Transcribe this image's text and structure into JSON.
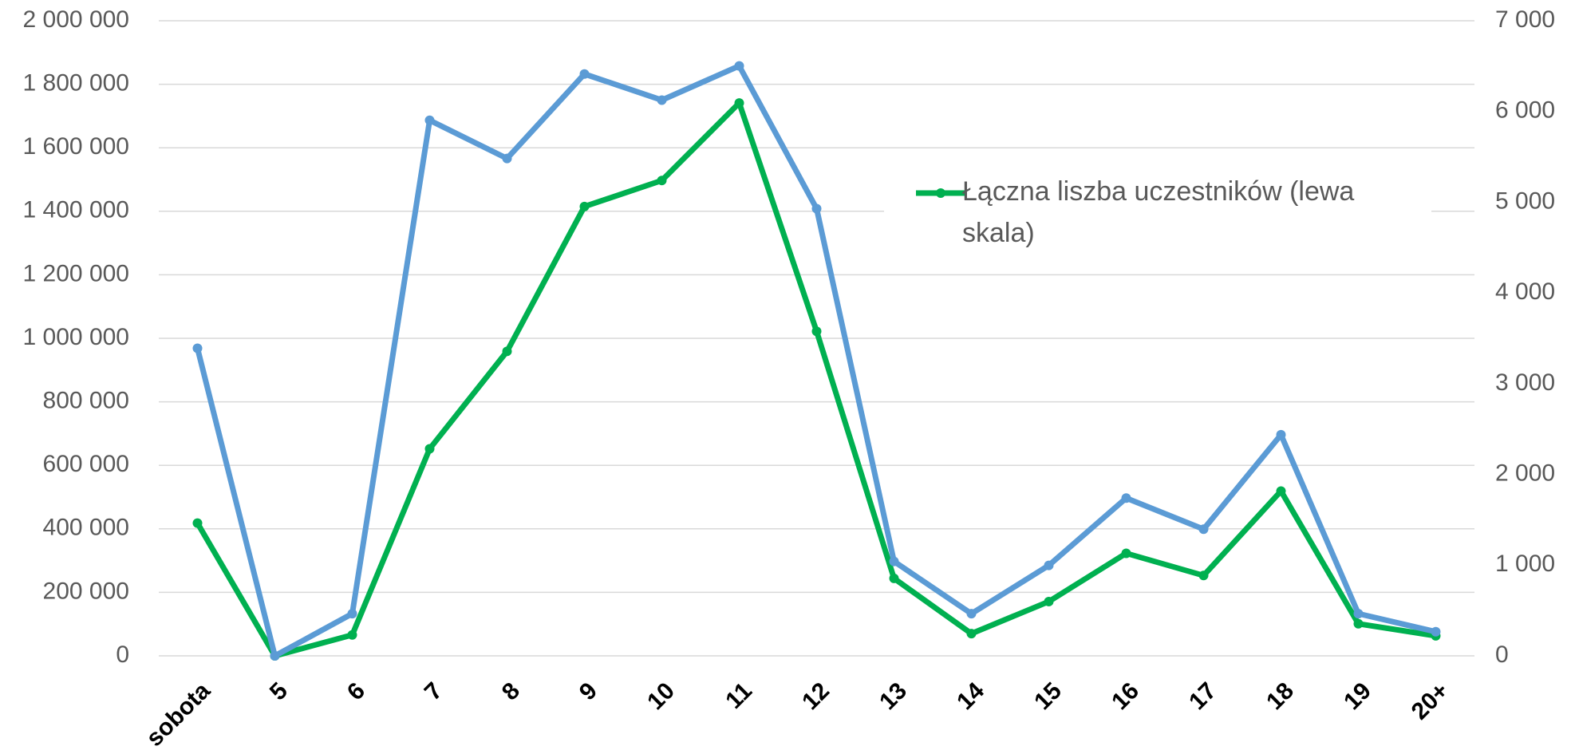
{
  "chart_data": {
    "type": "line",
    "categories": [
      "sobota",
      "5",
      "6",
      "7",
      "8",
      "9",
      "10",
      "11",
      "12",
      "13",
      "14",
      "15",
      "16",
      "17",
      "18",
      "19",
      "20+"
    ],
    "series": [
      {
        "name": "Łączna liszba uczestników (lewa skala)",
        "color": "#00b050",
        "axis": "y",
        "values": [
          418000,
          0,
          66000,
          652000,
          959000,
          1415000,
          1497000,
          1741000,
          1022000,
          244000,
          70000,
          171000,
          323000,
          253000,
          519000,
          101000,
          63000
        ]
      },
      {
        "color": "#5b9bd5",
        "axis": "y2",
        "values": [
          3390,
          0,
          465,
          5903,
          5482,
          6413,
          6125,
          6502,
          4929,
          1041,
          465,
          997,
          1739,
          1396,
          2437,
          465,
          266
        ]
      }
    ],
    "ylim": [
      0,
      2000000
    ],
    "yticks": [
      0,
      {
        "value": 200000,
        "label": "200 000"
      },
      {
        "value": 400000,
        "label": "400 000"
      },
      {
        "value": 600000,
        "label": "600 000"
      },
      {
        "value": 800000,
        "label": "800 000"
      },
      {
        "value": 1000000,
        "label": "1 000 000"
      },
      {
        "value": 1200000,
        "label": "1 200 000"
      },
      {
        "value": 1400000,
        "label": "1 400 000"
      },
      {
        "value": 1600000,
        "label": "1 600 000"
      },
      {
        "value": 1800000,
        "label": "1 800 000"
      },
      {
        "value": 2000000,
        "label": "2 000 000"
      }
    ],
    "y2lim": [
      0,
      7000
    ],
    "y2ticks": [
      0,
      {
        "value": 1000,
        "label": "1 000"
      },
      {
        "value": 2000,
        "label": "2 000"
      },
      {
        "value": 3000,
        "label": "3 000"
      },
      {
        "value": 4000,
        "label": "4 000"
      },
      {
        "value": 5000,
        "label": "5 000"
      },
      {
        "value": 6000,
        "label": "6 000"
      },
      {
        "value": 7000,
        "label": "7 000"
      }
    ],
    "grid": true
  }
}
